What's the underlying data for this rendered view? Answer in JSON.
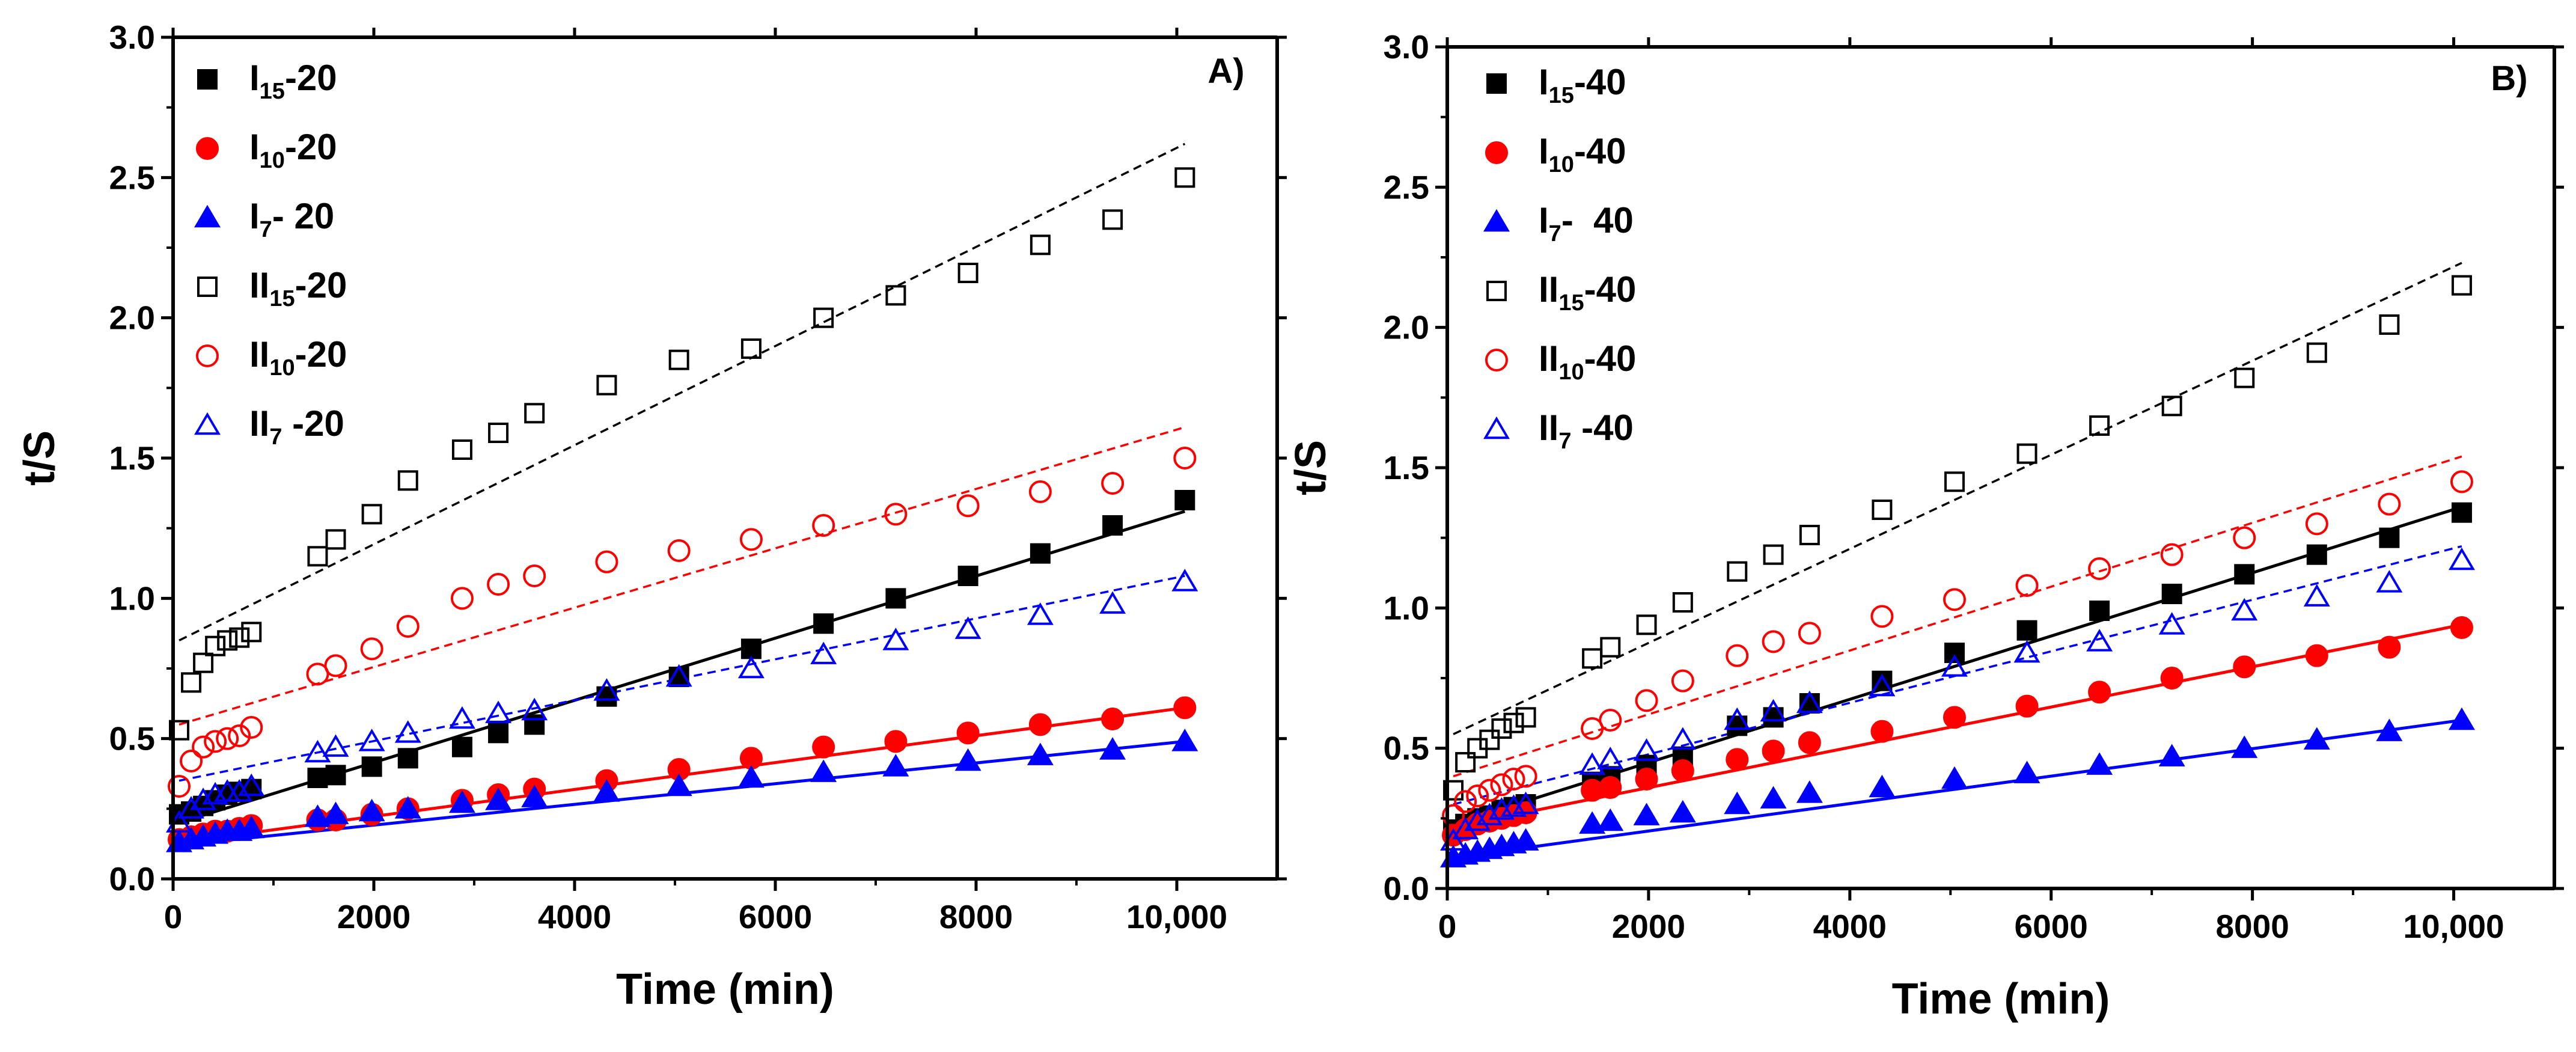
{
  "chart_data": [
    {
      "type": "scatter",
      "panel_label": "A)",
      "xlabel": "Time (min)",
      "ylabel": "t/S",
      "xlim": [
        0,
        11000
      ],
      "ylim": [
        0,
        3.0
      ],
      "xticks": [
        0,
        2000,
        4000,
        6000,
        8000,
        10000
      ],
      "xtick_labels": [
        "0",
        "2000",
        "4000",
        "6000",
        "8000",
        "10,000"
      ],
      "yticks": [
        0,
        0.5,
        1.0,
        1.5,
        2.0,
        2.5,
        3.0
      ],
      "ytick_labels": [
        "0.0",
        "0.5",
        "1.0",
        "1.5",
        "2.0",
        "2.5",
        "3.0"
      ],
      "legend_position": "top-left",
      "x": [
        60,
        180,
        300,
        420,
        540,
        660,
        780,
        1440,
        1620,
        1980,
        2340,
        2880,
        3240,
        3600,
        4320,
        5040,
        5760,
        6480,
        7200,
        7920,
        8640,
        9360,
        10080
      ],
      "series": [
        {
          "name": "I15-20",
          "base": "I",
          "sub": "15",
          "suffix": "-20",
          "marker": "square",
          "filled": true,
          "color": "#000000",
          "fit_style": "solid",
          "fit": [
            0.2,
            1.31
          ],
          "values": [
            0.23,
            0.24,
            0.26,
            0.28,
            0.3,
            0.31,
            0.32,
            0.36,
            0.37,
            0.4,
            0.43,
            0.47,
            0.52,
            0.55,
            0.65,
            0.72,
            0.82,
            0.91,
            1.0,
            1.08,
            1.16,
            1.26,
            1.35
          ]
        },
        {
          "name": "I10-20",
          "base": "I",
          "sub": "10",
          "suffix": "-20",
          "marker": "circle",
          "filled": true,
          "color": "#ff0000",
          "fit_style": "solid",
          "fit": [
            0.13,
            0.61
          ],
          "values": [
            0.14,
            0.15,
            0.16,
            0.17,
            0.17,
            0.18,
            0.19,
            0.21,
            0.21,
            0.23,
            0.25,
            0.28,
            0.3,
            0.32,
            0.35,
            0.39,
            0.43,
            0.47,
            0.49,
            0.52,
            0.55,
            0.57,
            0.61
          ]
        },
        {
          "name": "I7- 20",
          "base": "I",
          "sub": "7",
          "suffix": "- 20",
          "marker": "triangle",
          "filled": true,
          "color": "#0000ff",
          "fit_style": "solid",
          "fit": [
            0.12,
            0.49
          ],
          "values": [
            0.13,
            0.14,
            0.15,
            0.16,
            0.17,
            0.17,
            0.18,
            0.22,
            0.23,
            0.24,
            0.25,
            0.27,
            0.28,
            0.29,
            0.31,
            0.33,
            0.36,
            0.38,
            0.4,
            0.42,
            0.44,
            0.46,
            0.49
          ]
        },
        {
          "name": "II15-20",
          "base": "II",
          "sub": "15",
          "suffix": "-20",
          "marker": "square",
          "filled": false,
          "color": "#000000",
          "fit_style": "dashed",
          "fit": [
            0.85,
            2.62
          ],
          "values": [
            0.53,
            0.7,
            0.77,
            0.83,
            0.85,
            0.86,
            0.88,
            1.15,
            1.21,
            1.3,
            1.42,
            1.53,
            1.59,
            1.66,
            1.76,
            1.85,
            1.89,
            2.0,
            2.08,
            2.16,
            2.26,
            2.35,
            2.5
          ]
        },
        {
          "name": "II10-20",
          "base": "II",
          "sub": "10",
          "suffix": "-20",
          "marker": "circle",
          "filled": false,
          "color": "#ff0000",
          "fit_style": "dashed",
          "fit": [
            0.55,
            1.61
          ],
          "values": [
            0.33,
            0.42,
            0.47,
            0.49,
            0.5,
            0.51,
            0.54,
            0.73,
            0.76,
            0.82,
            0.9,
            1.0,
            1.05,
            1.08,
            1.13,
            1.17,
            1.21,
            1.26,
            1.3,
            1.33,
            1.38,
            1.41,
            1.5
          ]
        },
        {
          "name": "II7 -20",
          "base": "II",
          "sub": "7",
          "suffix": " -20",
          "marker": "triangle",
          "filled": false,
          "color": "#0000ff",
          "fit_style": "dashed",
          "fit": [
            0.35,
            1.08
          ],
          "values": [
            0.2,
            0.25,
            0.28,
            0.3,
            0.31,
            0.31,
            0.33,
            0.45,
            0.47,
            0.49,
            0.52,
            0.57,
            0.59,
            0.6,
            0.67,
            0.72,
            0.75,
            0.8,
            0.85,
            0.89,
            0.94,
            0.98,
            1.06
          ]
        }
      ]
    },
    {
      "type": "scatter",
      "panel_label": "B)",
      "xlabel": "Time (min)",
      "ylabel": "t/S",
      "xlim": [
        0,
        11000
      ],
      "ylim": [
        0,
        3.0
      ],
      "xticks": [
        0,
        2000,
        4000,
        6000,
        8000,
        10000
      ],
      "xtick_labels": [
        "0",
        "2000",
        "4000",
        "6000",
        "8000",
        "10,000"
      ],
      "yticks": [
        0,
        0.5,
        1.0,
        1.5,
        2.0,
        2.5,
        3.0
      ],
      "ytick_labels": [
        "0.0",
        "0.5",
        "1.0",
        "1.5",
        "2.0",
        "2.5",
        "3.0"
      ],
      "legend_position": "top-left",
      "x": [
        60,
        180,
        300,
        420,
        540,
        660,
        780,
        1440,
        1620,
        1980,
        2340,
        2880,
        3240,
        3600,
        4320,
        5040,
        5760,
        6480,
        7200,
        7920,
        8640,
        9360,
        10080
      ],
      "series": [
        {
          "name": "I15-40",
          "base": "I",
          "sub": "15",
          "suffix": "-40",
          "marker": "square",
          "filled": true,
          "color": "#000000",
          "fit_style": "solid",
          "fit": [
            0.23,
            1.36
          ],
          "values": [
            0.21,
            0.23,
            0.25,
            0.26,
            0.28,
            0.29,
            0.3,
            0.38,
            0.4,
            0.44,
            0.47,
            0.58,
            0.61,
            0.66,
            0.74,
            0.84,
            0.92,
            0.99,
            1.05,
            1.12,
            1.19,
            1.25,
            1.34
          ]
        },
        {
          "name": "I10-40",
          "base": "I",
          "sub": "10",
          "suffix": "-40",
          "marker": "circle",
          "filled": true,
          "color": "#ff0000",
          "fit_style": "solid",
          "fit": [
            0.22,
            0.94
          ],
          "values": [
            0.19,
            0.21,
            0.23,
            0.24,
            0.25,
            0.26,
            0.27,
            0.35,
            0.36,
            0.39,
            0.42,
            0.46,
            0.49,
            0.52,
            0.56,
            0.61,
            0.65,
            0.7,
            0.75,
            0.79,
            0.83,
            0.86,
            0.93
          ]
        },
        {
          "name": "I7-  40",
          "base": "I",
          "sub": "7",
          "suffix": "-  40",
          "marker": "triangle",
          "filled": true,
          "color": "#0000ff",
          "fit_style": "solid",
          "fit": [
            0.11,
            0.6
          ],
          "values": [
            0.11,
            0.12,
            0.13,
            0.14,
            0.15,
            0.16,
            0.17,
            0.23,
            0.24,
            0.26,
            0.27,
            0.3,
            0.32,
            0.34,
            0.36,
            0.39,
            0.41,
            0.44,
            0.47,
            0.5,
            0.53,
            0.56,
            0.6
          ]
        },
        {
          "name": "II15-40",
          "base": "II",
          "sub": "15",
          "suffix": "-40",
          "marker": "square",
          "filled": false,
          "color": "#000000",
          "fit_style": "dashed",
          "fit": [
            0.55,
            2.23
          ],
          "values": [
            0.35,
            0.45,
            0.5,
            0.53,
            0.57,
            0.59,
            0.61,
            0.82,
            0.86,
            0.94,
            1.02,
            1.13,
            1.19,
            1.26,
            1.35,
            1.45,
            1.55,
            1.65,
            1.72,
            1.82,
            1.91,
            2.01,
            2.15
          ]
        },
        {
          "name": "II10-40",
          "base": "II",
          "sub": "10",
          "suffix": "-40",
          "marker": "circle",
          "filled": false,
          "color": "#ff0000",
          "fit_style": "dashed",
          "fit": [
            0.4,
            1.54
          ],
          "values": [
            0.26,
            0.31,
            0.33,
            0.35,
            0.37,
            0.39,
            0.4,
            0.57,
            0.6,
            0.67,
            0.74,
            0.83,
            0.88,
            0.91,
            0.97,
            1.03,
            1.08,
            1.14,
            1.19,
            1.25,
            1.3,
            1.37,
            1.45
          ]
        },
        {
          "name": "II7 -40",
          "base": "II",
          "sub": "7",
          "suffix": " -40",
          "marker": "triangle",
          "filled": false,
          "color": "#0000ff",
          "fit_style": "dashed",
          "fit": [
            0.3,
            1.22
          ],
          "values": [
            0.17,
            0.21,
            0.24,
            0.26,
            0.28,
            0.29,
            0.3,
            0.44,
            0.46,
            0.49,
            0.53,
            0.6,
            0.63,
            0.66,
            0.72,
            0.79,
            0.84,
            0.88,
            0.94,
            0.99,
            1.04,
            1.09,
            1.17
          ]
        }
      ]
    }
  ]
}
